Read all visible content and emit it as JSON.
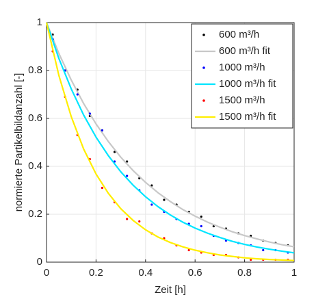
{
  "chart_data": {
    "type": "scatter",
    "xlabel": "Zeit [h]",
    "ylabel": "normierte Partikelbildanzahl [-]",
    "xlim": [
      0,
      1
    ],
    "ylim": [
      0,
      1
    ],
    "xticks": [
      0,
      0.2,
      0.4,
      0.6,
      0.8,
      1
    ],
    "yticks": [
      0,
      0.2,
      0.4,
      0.6,
      0.8,
      1
    ],
    "grid": true,
    "legend": "northeast",
    "series": [
      {
        "name": "600 m³/h",
        "mode": "markers",
        "color": "#000000",
        "x": [
          0.025,
          0.075,
          0.125,
          0.175,
          0.225,
          0.275,
          0.325,
          0.375,
          0.425,
          0.475,
          0.525,
          0.575,
          0.625,
          0.675,
          0.725,
          0.775,
          0.825,
          0.875,
          0.925,
          0.975
        ],
        "values": [
          0.95,
          0.8,
          0.72,
          0.61,
          0.55,
          0.46,
          0.42,
          0.35,
          0.32,
          0.26,
          0.24,
          0.21,
          0.19,
          0.15,
          0.14,
          0.12,
          0.11,
          0.09,
          0.08,
          0.07
        ]
      },
      {
        "name": "600 m³/h fit",
        "mode": "line",
        "color": "#c8c8c8",
        "x": [
          0,
          0.05,
          0.1,
          0.15,
          0.2,
          0.25,
          0.3,
          0.35,
          0.4,
          0.45,
          0.5,
          0.55,
          0.6,
          0.65,
          0.7,
          0.75,
          0.8,
          0.85,
          0.9,
          0.95,
          1
        ],
        "values": [
          1,
          0.871,
          0.76,
          0.662,
          0.577,
          0.503,
          0.438,
          0.382,
          0.333,
          0.29,
          0.253,
          0.22,
          0.192,
          0.167,
          0.146,
          0.127,
          0.111,
          0.097,
          0.084,
          0.073,
          0.064
        ]
      },
      {
        "name": "1000 m³/h",
        "mode": "markers",
        "color": "#0000ff",
        "x": [
          0.025,
          0.075,
          0.125,
          0.175,
          0.225,
          0.275,
          0.325,
          0.375,
          0.425,
          0.475,
          0.525,
          0.575,
          0.625,
          0.675,
          0.725,
          0.775,
          0.825,
          0.875,
          0.925,
          0.975
        ],
        "values": [
          0.93,
          0.8,
          0.7,
          0.62,
          0.55,
          0.42,
          0.36,
          0.3,
          0.24,
          0.21,
          0.18,
          0.16,
          0.15,
          0.11,
          0.09,
          0.08,
          0.07,
          0.05,
          0.05,
          0.04
        ]
      },
      {
        "name": "1000 m³/h fit",
        "mode": "line",
        "color": "#00e5ff",
        "x": [
          0,
          0.05,
          0.1,
          0.15,
          0.2,
          0.25,
          0.3,
          0.35,
          0.4,
          0.45,
          0.5,
          0.55,
          0.6,
          0.65,
          0.7,
          0.75,
          0.8,
          0.85,
          0.9,
          0.95,
          1
        ],
        "values": [
          1,
          0.85,
          0.723,
          0.614,
          0.522,
          0.444,
          0.377,
          0.321,
          0.273,
          0.232,
          0.197,
          0.167,
          0.142,
          0.121,
          0.103,
          0.087,
          0.074,
          0.063,
          0.054,
          0.046,
          0.039
        ]
      },
      {
        "name": "1500 m³/h",
        "mode": "markers",
        "color": "#ff0000",
        "x": [
          0.025,
          0.075,
          0.125,
          0.175,
          0.225,
          0.275,
          0.325,
          0.375,
          0.425,
          0.475,
          0.525,
          0.575,
          0.625,
          0.675,
          0.725,
          0.775,
          0.825,
          0.875,
          0.925,
          0.975
        ],
        "values": [
          0.88,
          0.69,
          0.53,
          0.43,
          0.31,
          0.25,
          0.18,
          0.17,
          0.12,
          0.1,
          0.07,
          0.05,
          0.04,
          0.03,
          0.03,
          0.02,
          0.01,
          0.01,
          0.01,
          0.01
        ]
      },
      {
        "name": "1500 m³/h fit",
        "mode": "line",
        "color": "#ffee00",
        "x": [
          0,
          0.05,
          0.1,
          0.15,
          0.2,
          0.25,
          0.3,
          0.35,
          0.4,
          0.45,
          0.5,
          0.55,
          0.6,
          0.65,
          0.7,
          0.75,
          0.8,
          0.85,
          0.9,
          0.95,
          1
        ],
        "values": [
          1,
          0.779,
          0.607,
          0.472,
          0.368,
          0.287,
          0.223,
          0.174,
          0.135,
          0.105,
          0.082,
          0.064,
          0.05,
          0.039,
          0.03,
          0.024,
          0.018,
          0.014,
          0.011,
          0.009,
          0.007
        ]
      }
    ]
  }
}
